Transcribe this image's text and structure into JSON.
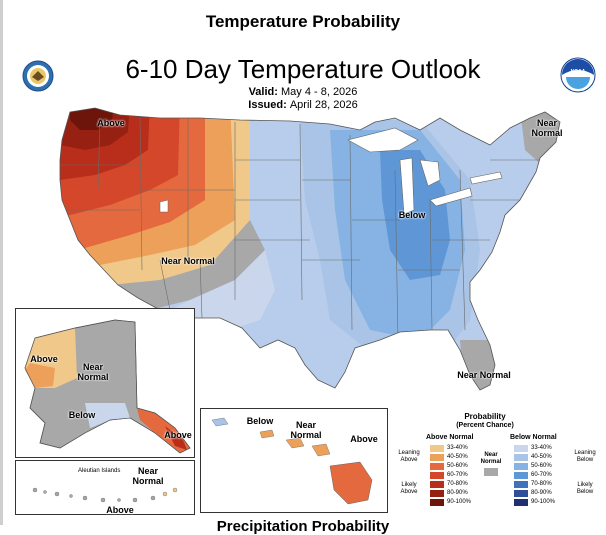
{
  "header": {
    "title": "Temperature Probability"
  },
  "map": {
    "title": "6-10 Day Temperature Outlook",
    "valid_label": "Valid:",
    "valid_value": "May 4 - 8, 2026",
    "issued_label": "Issued:",
    "issued_value": "April 28, 2026"
  },
  "regions": {
    "above_west": "Above",
    "near_southwest": "Near Normal",
    "near_new_england": "Near Normal",
    "below_midwest": "Below",
    "near_florida": "Near Normal"
  },
  "alaska": {
    "above": "Above",
    "near": "Near Normal",
    "below": "Below",
    "above_southeast": "Above",
    "aleutian": "Aleutian Islands",
    "near_aleutian": "Near Normal",
    "above_aleutian": "Above"
  },
  "hawaii": {
    "below": "Below",
    "near": "Near Normal",
    "above": "Above"
  },
  "legend": {
    "title": "Probability",
    "subtitle": "(Percent Chance)",
    "above_header": "Above Normal",
    "below_header": "Below Normal",
    "near_label": "Near Normal",
    "leaning_above": "Leaning Above",
    "likely_above": "Likely Above",
    "leaning_below": "Leaning Below",
    "likely_below": "Likely Below",
    "above_bins": [
      "33-40%",
      "40-50%",
      "50-60%",
      "60-70%",
      "70-80%",
      "80-90%",
      "90-100%"
    ],
    "below_bins": [
      "33-40%",
      "40-50%",
      "50-60%",
      "60-70%",
      "70-80%",
      "80-90%",
      "90-100%"
    ],
    "above_colors": [
      "#f0c98a",
      "#eda05a",
      "#e5693e",
      "#d4472a",
      "#b82e1a",
      "#962012",
      "#6d140b"
    ],
    "below_colors": [
      "#c9d6ec",
      "#a9c4e6",
      "#86b3e3",
      "#5f97d6",
      "#3f71bd",
      "#2f4f99",
      "#1f2f72"
    ],
    "near_color": "#a8a8a8"
  },
  "footer": {
    "next_title": "Precipitation Probability"
  }
}
